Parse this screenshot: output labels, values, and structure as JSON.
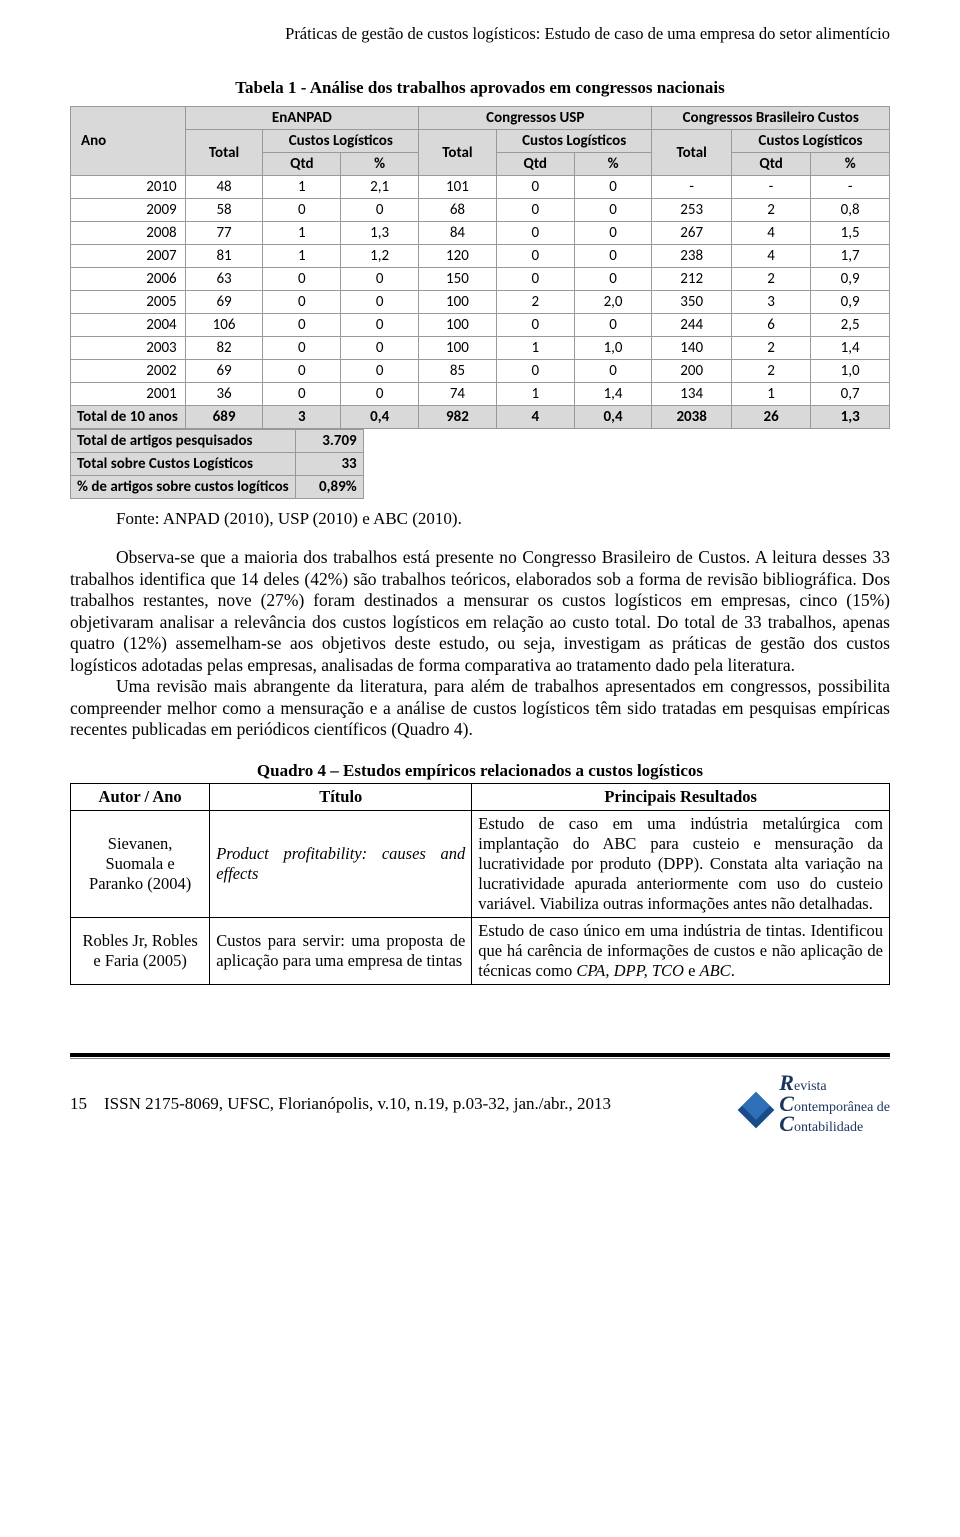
{
  "header": {
    "running": "Práticas de gestão de custos logísticos: Estudo de caso de uma empresa do setor alimentício"
  },
  "table1": {
    "caption": "Tabela 1 - Análise dos trabalhos aprovados em congressos nacionais",
    "source": "Fonte: ANPAD (2010), USP (2010) e ABC (2010).",
    "head": {
      "ano": "Ano",
      "g1": "EnANPAD",
      "g2": "Congressos USP",
      "g3": "Congressos Brasileiro Custos",
      "total": "Total",
      "cl": "Custos Logísticos",
      "qtd": "Qtd",
      "pct": "%"
    },
    "rows": [
      {
        "y": "2010",
        "a": [
          "48",
          "1",
          "2,1"
        ],
        "b": [
          "101",
          "0",
          "0"
        ],
        "c": [
          "-",
          "-",
          "-"
        ]
      },
      {
        "y": "2009",
        "a": [
          "58",
          "0",
          "0"
        ],
        "b": [
          "68",
          "0",
          "0"
        ],
        "c": [
          "253",
          "2",
          "0,8"
        ]
      },
      {
        "y": "2008",
        "a": [
          "77",
          "1",
          "1,3"
        ],
        "b": [
          "84",
          "0",
          "0"
        ],
        "c": [
          "267",
          "4",
          "1,5"
        ]
      },
      {
        "y": "2007",
        "a": [
          "81",
          "1",
          "1,2"
        ],
        "b": [
          "120",
          "0",
          "0"
        ],
        "c": [
          "238",
          "4",
          "1,7"
        ]
      },
      {
        "y": "2006",
        "a": [
          "63",
          "0",
          "0"
        ],
        "b": [
          "150",
          "0",
          "0"
        ],
        "c": [
          "212",
          "2",
          "0,9"
        ]
      },
      {
        "y": "2005",
        "a": [
          "69",
          "0",
          "0"
        ],
        "b": [
          "100",
          "2",
          "2,0"
        ],
        "c": [
          "350",
          "3",
          "0,9"
        ]
      },
      {
        "y": "2004",
        "a": [
          "106",
          "0",
          "0"
        ],
        "b": [
          "100",
          "0",
          "0"
        ],
        "c": [
          "244",
          "6",
          "2,5"
        ]
      },
      {
        "y": "2003",
        "a": [
          "82",
          "0",
          "0"
        ],
        "b": [
          "100",
          "1",
          "1,0"
        ],
        "c": [
          "140",
          "2",
          "1,4"
        ]
      },
      {
        "y": "2002",
        "a": [
          "69",
          "0",
          "0"
        ],
        "b": [
          "85",
          "0",
          "0"
        ],
        "c": [
          "200",
          "2",
          "1,0"
        ]
      },
      {
        "y": "2001",
        "a": [
          "36",
          "0",
          "0"
        ],
        "b": [
          "74",
          "1",
          "1,4"
        ],
        "c": [
          "134",
          "1",
          "0,7"
        ]
      }
    ],
    "total_row": {
      "label": "Total de 10 anos",
      "a": [
        "689",
        "3",
        "0,4"
      ],
      "b": [
        "982",
        "4",
        "0,4"
      ],
      "c": [
        "2038",
        "26",
        "1,3"
      ]
    },
    "summary": [
      {
        "label": "Total de artigos pesquisados",
        "value": "3.709"
      },
      {
        "label": "Total sobre Custos Logísticos",
        "value": "33"
      },
      {
        "label": "% de artigos sobre custos logíticos",
        "value": "0,89%"
      }
    ],
    "style": {
      "font_family": "Calibri, Arial, sans-serif",
      "font_size_pt": 11,
      "header_bg": "#d9d9d9",
      "border_color": "#999999",
      "text_color": "#000000",
      "col_widths_pct": [
        14,
        9.5,
        9.5,
        9.5,
        9.5,
        9.5,
        9.5,
        9.7,
        9.7,
        9.6
      ]
    }
  },
  "paragraphs": {
    "p1": "Observa-se que a maioria dos trabalhos está presente no Congresso Brasileiro de Custos. A leitura desses 33 trabalhos identifica que 14 deles (42%) são trabalhos teóricos, elaborados sob a forma de revisão bibliográfica. Dos trabalhos restantes, nove (27%) foram destinados a mensurar os custos logísticos em empresas, cinco (15%) objetivaram analisar a relevância dos custos logísticos em relação ao custo total. Do total de 33 trabalhos, apenas quatro (12%) assemelham-se aos objetivos deste estudo, ou seja, investigam as práticas de gestão dos custos logísticos adotadas pelas empresas, analisadas de forma comparativa ao tratamento dado pela literatura.",
    "p2": "Uma revisão mais abrangente da literatura, para além de trabalhos apresentados em congressos, possibilita compreender melhor como a mensuração e a análise de custos logísticos têm sido tratadas em pesquisas empíricas recentes publicadas em periódicos científicos (Quadro 4)."
  },
  "quadro4": {
    "caption": "Quadro 4 – Estudos empíricos relacionados a custos logísticos",
    "head": {
      "c1": "Autor / Ano",
      "c2": "Título",
      "c3": "Principais Resultados"
    },
    "rows": [
      {
        "author": "Sievanen, Suomala e Paranko (2004)",
        "title_pre": "",
        "title_ital": "Product profitability: causes and effects",
        "title_post": "",
        "result": "Estudo de caso em uma indústria metalúrgica com implantação do ABC para custeio e mensuração da lucratividade por produto (DPP). Constata alta variação na lucratividade apurada anteriormente com uso do custeio variável. Viabiliza outras informações antes não detalhadas."
      },
      {
        "author": "Robles Jr, Robles e Faria (2005)",
        "title_pre": "Custos para servir: uma proposta de aplicação para uma empresa de tintas",
        "title_ital": "",
        "title_post": "",
        "result_pre": "Estudo de caso único em uma indústria de tintas. Identificou que há carência de informações de custos e não aplicação de técnicas como ",
        "result_ital": "CPA, DPP, TCO",
        "result_post": " e ",
        "result_ital2": "ABC",
        "result_post2": "."
      }
    ],
    "style": {
      "border_color": "#000000",
      "font_size_pt": 12,
      "col_widths_pct": [
        17,
        32,
        51
      ]
    }
  },
  "footer": {
    "page": "15",
    "issn": "ISSN 2175-8069, UFSC, Florianópolis, v.10, n.19, p.03-32, jan./abr., 2013",
    "logo": {
      "big_r": "R",
      "line1": "evista",
      "big_c": "C",
      "line2": "ontemporânea de",
      "line3": "ontabilidade",
      "color": "#1b365d"
    }
  }
}
